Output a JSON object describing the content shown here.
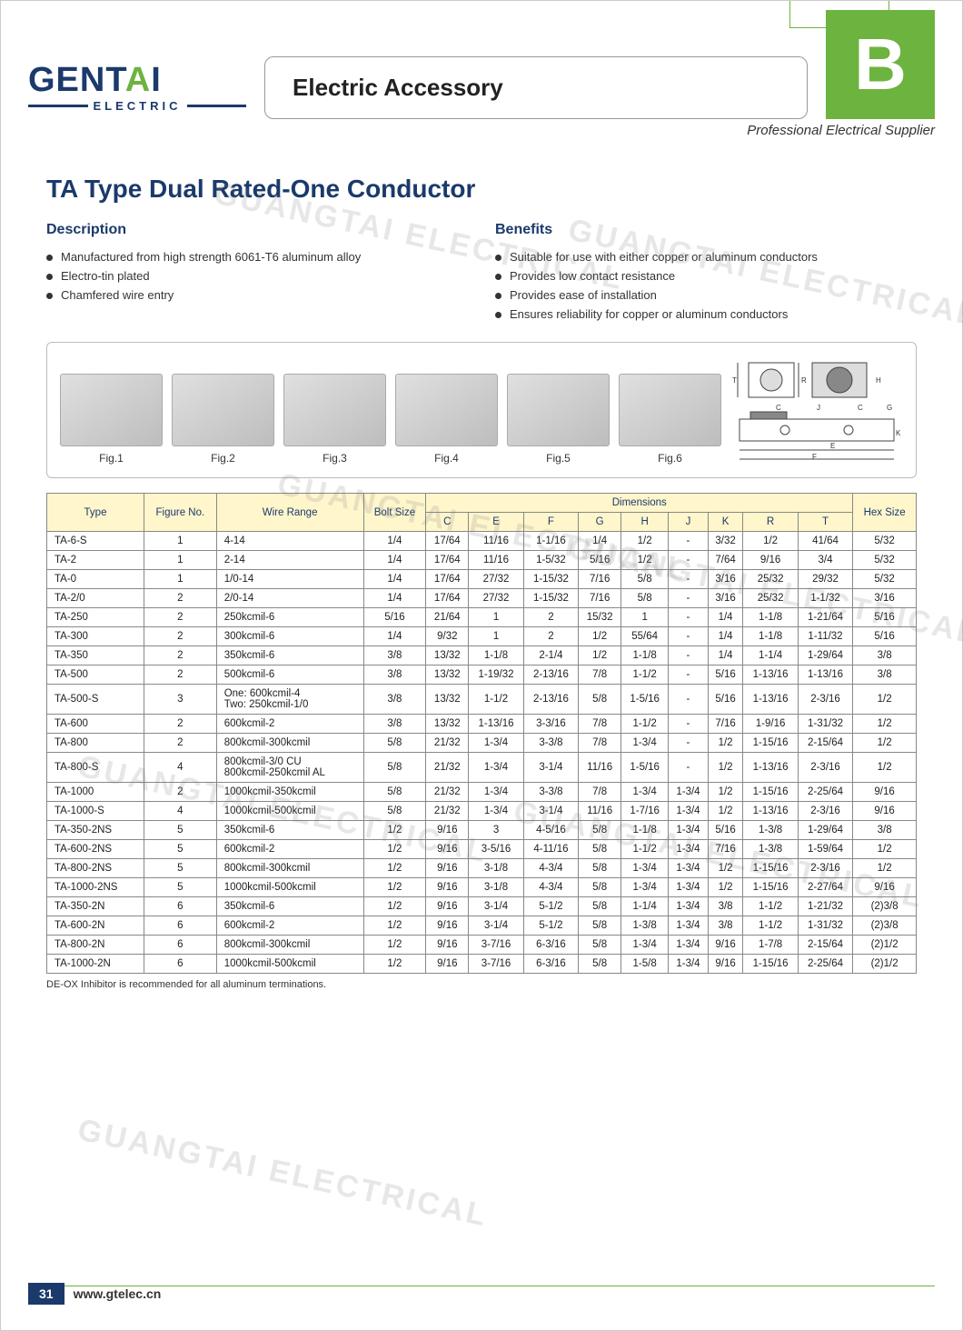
{
  "brand": {
    "name_prefix": "GENT",
    "name_accent": "A",
    "name_suffix": "I",
    "sub": "ELECTRIC"
  },
  "category": "Electric Accessory",
  "section_letter": "B",
  "tagline": "Professional Electrical Supplier",
  "title": "TA Type Dual Rated-One Conductor",
  "description_head": "Description",
  "description_items": [
    "Manufactured from high strength 6061-T6 aluminum alloy",
    "Electro-tin plated",
    "Chamfered wire entry"
  ],
  "benefits_head": "Benefits",
  "benefits_items": [
    "Suitable for use with either copper or aluminum conductors",
    "Provides low contact resistance",
    "Provides ease of installation",
    "Ensures reliability for copper or aluminum conductors"
  ],
  "figure_labels": [
    "Fig.1",
    "Fig.2",
    "Fig.3",
    "Fig.4",
    "Fig.5",
    "Fig.6"
  ],
  "diagram_letters": [
    "T",
    "R",
    "H",
    "C",
    "J",
    "G",
    "E",
    "F",
    "K"
  ],
  "table": {
    "header_top": [
      "Type",
      "Figure No.",
      "Wire Range",
      "Bolt Size",
      "Dimensions",
      "Hex Size"
    ],
    "dim_cols": [
      "C",
      "E",
      "F",
      "G",
      "H",
      "J",
      "K",
      "R",
      "T"
    ],
    "rows": [
      [
        "TA-6-S",
        "1",
        "4-14",
        "1/4",
        "17/64",
        "11/16",
        "1-1/16",
        "1/4",
        "1/2",
        "-",
        "3/32",
        "1/2",
        "41/64",
        "5/32"
      ],
      [
        "TA-2",
        "1",
        "2-14",
        "1/4",
        "17/64",
        "11/16",
        "1-5/32",
        "5/16",
        "1/2",
        "-",
        "7/64",
        "9/16",
        "3/4",
        "5/32"
      ],
      [
        "TA-0",
        "1",
        "1/0-14",
        "1/4",
        "17/64",
        "27/32",
        "1-15/32",
        "7/16",
        "5/8",
        "-",
        "3/16",
        "25/32",
        "29/32",
        "5/32"
      ],
      [
        "TA-2/0",
        "2",
        "2/0-14",
        "1/4",
        "17/64",
        "27/32",
        "1-15/32",
        "7/16",
        "5/8",
        "-",
        "3/16",
        "25/32",
        "1-1/32",
        "3/16"
      ],
      [
        "TA-250",
        "2",
        "250kcmil-6",
        "5/16",
        "21/64",
        "1",
        "2",
        "15/32",
        "1",
        "-",
        "1/4",
        "1-1/8",
        "1-21/64",
        "5/16"
      ],
      [
        "TA-300",
        "2",
        "300kcmil-6",
        "1/4",
        "9/32",
        "1",
        "2",
        "1/2",
        "55/64",
        "-",
        "1/4",
        "1-1/8",
        "1-11/32",
        "5/16"
      ],
      [
        "TA-350",
        "2",
        "350kcmil-6",
        "3/8",
        "13/32",
        "1-1/8",
        "2-1/4",
        "1/2",
        "1-1/8",
        "-",
        "1/4",
        "1-1/4",
        "1-29/64",
        "3/8"
      ],
      [
        "TA-500",
        "2",
        "500kcmil-6",
        "3/8",
        "13/32",
        "1-19/32",
        "2-13/16",
        "7/8",
        "1-1/2",
        "-",
        "5/16",
        "1-13/16",
        "1-13/16",
        "3/8"
      ],
      [
        "TA-500-S",
        "3",
        "One: 600kcmil-4\nTwo: 250kcmil-1/0",
        "3/8",
        "13/32",
        "1-1/2",
        "2-13/16",
        "5/8",
        "1-5/16",
        "-",
        "5/16",
        "1-13/16",
        "2-3/16",
        "1/2"
      ],
      [
        "TA-600",
        "2",
        "600kcmil-2",
        "3/8",
        "13/32",
        "1-13/16",
        "3-3/16",
        "7/8",
        "1-1/2",
        "-",
        "7/16",
        "1-9/16",
        "1-31/32",
        "1/2"
      ],
      [
        "TA-800",
        "2",
        "800kcmil-300kcmil",
        "5/8",
        "21/32",
        "1-3/4",
        "3-3/8",
        "7/8",
        "1-3/4",
        "-",
        "1/2",
        "1-15/16",
        "2-15/64",
        "1/2"
      ],
      [
        "TA-800-S",
        "4",
        "800kcmil-3/0 CU\n800kcmil-250kcmil AL",
        "5/8",
        "21/32",
        "1-3/4",
        "3-1/4",
        "11/16",
        "1-5/16",
        "-",
        "1/2",
        "1-13/16",
        "2-3/16",
        "1/2"
      ],
      [
        "TA-1000",
        "2",
        "1000kcmil-350kcmil",
        "5/8",
        "21/32",
        "1-3/4",
        "3-3/8",
        "7/8",
        "1-3/4",
        "1-3/4",
        "1/2",
        "1-15/16",
        "2-25/64",
        "9/16"
      ],
      [
        "TA-1000-S",
        "4",
        "1000kcmil-500kcmil",
        "5/8",
        "21/32",
        "1-3/4",
        "3-1/4",
        "11/16",
        "1-7/16",
        "1-3/4",
        "1/2",
        "1-13/16",
        "2-3/16",
        "9/16"
      ],
      [
        "TA-350-2NS",
        "5",
        "350kcmil-6",
        "1/2",
        "9/16",
        "3",
        "4-5/16",
        "5/8",
        "1-1/8",
        "1-3/4",
        "5/16",
        "1-3/8",
        "1-29/64",
        "3/8"
      ],
      [
        "TA-600-2NS",
        "5",
        "600kcmil-2",
        "1/2",
        "9/16",
        "3-5/16",
        "4-11/16",
        "5/8",
        "1-1/2",
        "1-3/4",
        "7/16",
        "1-3/8",
        "1-59/64",
        "1/2"
      ],
      [
        "TA-800-2NS",
        "5",
        "800kcmil-300kcmil",
        "1/2",
        "9/16",
        "3-1/8",
        "4-3/4",
        "5/8",
        "1-3/4",
        "1-3/4",
        "1/2",
        "1-15/16",
        "2-3/16",
        "1/2"
      ],
      [
        "TA-1000-2NS",
        "5",
        "1000kcmil-500kcmil",
        "1/2",
        "9/16",
        "3-1/8",
        "4-3/4",
        "5/8",
        "1-3/4",
        "1-3/4",
        "1/2",
        "1-15/16",
        "2-27/64",
        "9/16"
      ],
      [
        "TA-350-2N",
        "6",
        "350kcmil-6",
        "1/2",
        "9/16",
        "3-1/4",
        "5-1/2",
        "5/8",
        "1-1/4",
        "1-3/4",
        "3/8",
        "1-1/2",
        "1-21/32",
        "(2)3/8"
      ],
      [
        "TA-600-2N",
        "6",
        "600kcmil-2",
        "1/2",
        "9/16",
        "3-1/4",
        "5-1/2",
        "5/8",
        "1-3/8",
        "1-3/4",
        "3/8",
        "1-1/2",
        "1-31/32",
        "(2)3/8"
      ],
      [
        "TA-800-2N",
        "6",
        "800kcmil-300kcmil",
        "1/2",
        "9/16",
        "3-7/16",
        "6-3/16",
        "5/8",
        "1-3/4",
        "1-3/4",
        "9/16",
        "1-7/8",
        "2-15/64",
        "(2)1/2"
      ],
      [
        "TA-1000-2N",
        "6",
        "1000kcmil-500kcmil",
        "1/2",
        "9/16",
        "3-7/16",
        "6-3/16",
        "5/8",
        "1-5/8",
        "1-3/4",
        "9/16",
        "1-15/16",
        "2-25/64",
        "(2)1/2"
      ]
    ]
  },
  "footnote": "DE-OX Inhibitor is recommended for all aluminum terminations.",
  "page_number": "31",
  "website": "www.gtelec.cn",
  "watermark_text": "GUANGTAI ELECTRICAL",
  "colors": {
    "brand_blue": "#1b3a6b",
    "accent_green": "#6db33f",
    "header_bg": "#fff6cc"
  }
}
